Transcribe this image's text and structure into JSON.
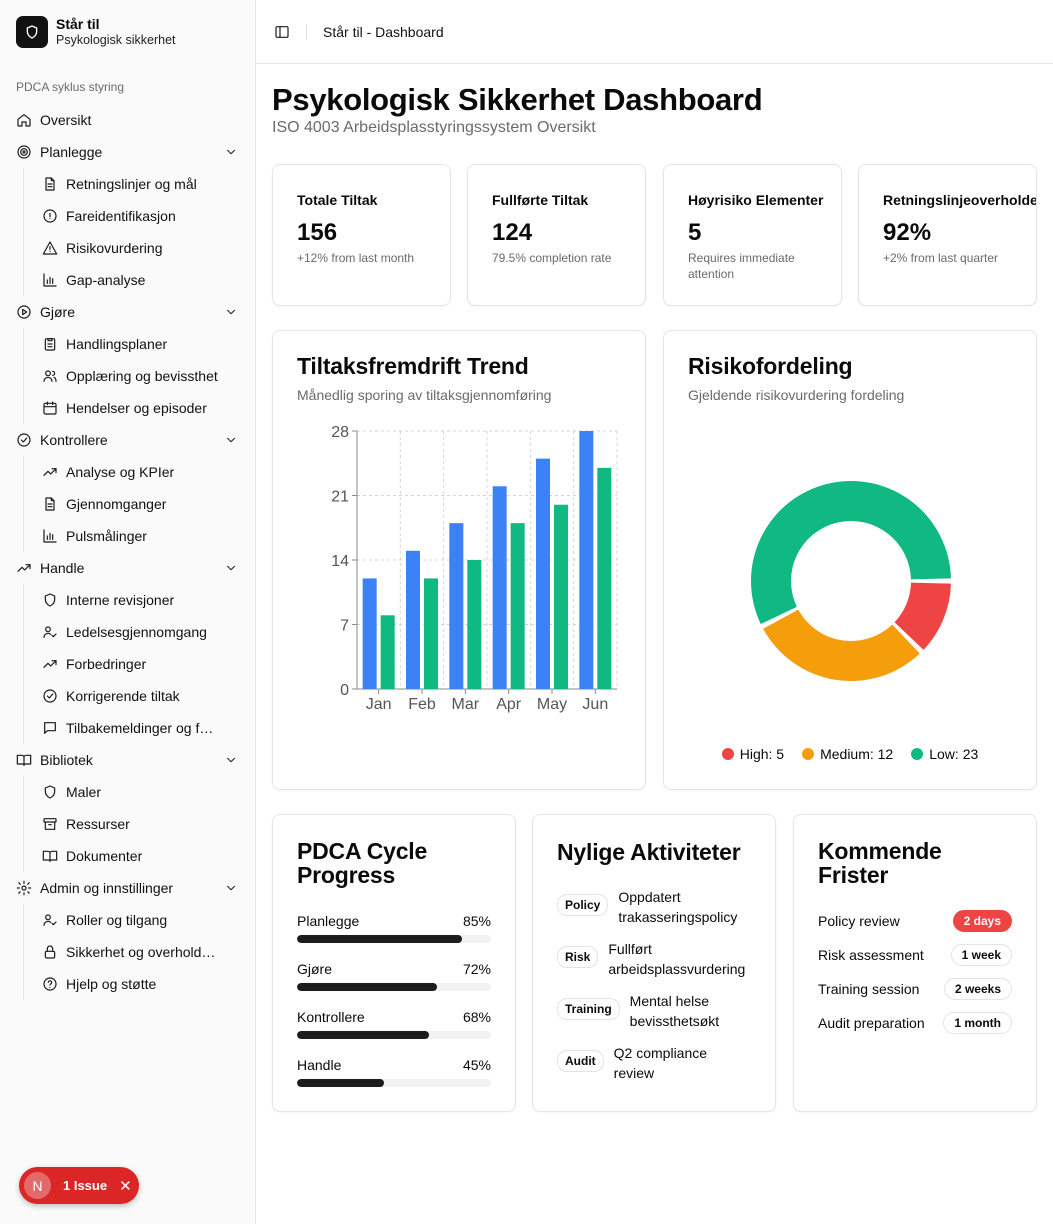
{
  "brand": {
    "title": "Står til",
    "subtitle": "Psykologisk sikkerhet"
  },
  "sidebar": {
    "group_label": "PDCA syklus styring",
    "overview": {
      "label": "Oversikt",
      "icon": "home-icon"
    },
    "sections": [
      {
        "label": "Planlegge",
        "icon": "target-icon",
        "items": [
          {
            "label": "Retningslinjer og mål",
            "icon": "file-text-icon"
          },
          {
            "label": "Fareidentifikasjon",
            "icon": "alert-circle-icon"
          },
          {
            "label": "Risikovurdering",
            "icon": "alert-triangle-icon"
          },
          {
            "label": "Gap-analyse",
            "icon": "bar-chart-icon"
          }
        ]
      },
      {
        "label": "Gjøre",
        "icon": "play-circle-icon",
        "items": [
          {
            "label": "Handlingsplaner",
            "icon": "clipboard-icon"
          },
          {
            "label": "Opplæring og bevissthet",
            "icon": "users-icon"
          },
          {
            "label": "Hendelser og episoder",
            "icon": "calendar-icon"
          }
        ]
      },
      {
        "label": "Kontrollere",
        "icon": "check-circle-icon",
        "items": [
          {
            "label": "Analyse og KPIer",
            "icon": "trending-up-icon"
          },
          {
            "label": "Gjennomganger",
            "icon": "file-text-icon"
          },
          {
            "label": "Pulsmålinger",
            "icon": "bar-chart-icon"
          }
        ]
      },
      {
        "label": "Handle",
        "icon": "trending-up-icon",
        "items": [
          {
            "label": "Interne revisjoner",
            "icon": "shield-icon"
          },
          {
            "label": "Ledelsesgjennomgang",
            "icon": "user-check-icon"
          },
          {
            "label": "Forbedringer",
            "icon": "trending-up-icon"
          },
          {
            "label": "Korrigerende tiltak",
            "icon": "check-circle-icon"
          },
          {
            "label": "Tilbakemeldinger og forslag",
            "icon": "message-square-icon"
          }
        ]
      },
      {
        "label": "Bibliotek",
        "icon": "book-open-icon",
        "items": [
          {
            "label": "Maler",
            "icon": "shield-icon"
          },
          {
            "label": "Ressurser",
            "icon": "archive-icon"
          },
          {
            "label": "Dokumenter",
            "icon": "book-open-icon"
          }
        ]
      },
      {
        "label": "Admin og innstillinger",
        "icon": "gear-icon",
        "items": [
          {
            "label": "Roller og tilgang",
            "icon": "user-check-icon"
          },
          {
            "label": "Sikkerhet og overholdelse",
            "icon": "lock-icon"
          },
          {
            "label": "Hjelp og støtte",
            "icon": "help-circle-icon"
          }
        ]
      }
    ]
  },
  "header": {
    "breadcrumb": "Står til - Dashboard"
  },
  "page": {
    "title": "Psykologisk Sikkerhet Dashboard",
    "subtitle": "ISO 4003 Arbeidsplasstyringssystem Oversikt"
  },
  "stats": [
    {
      "title": "Totale Tiltak",
      "value": "156",
      "note": "+12% from last month"
    },
    {
      "title": "Fullførte Tiltak",
      "value": "124",
      "note": "79.5% completion rate"
    },
    {
      "title": "Høyrisiko Elementer",
      "value": "5",
      "note": "Requires immediate attention"
    },
    {
      "title": "Retningslinjeoverholdelse",
      "value": "92%",
      "note": "+2% from last quarter"
    }
  ],
  "trend_card": {
    "title": "Tiltaksfremdrift Trend",
    "subtitle": "Månedlig sporing av tiltaksgjennomføring"
  },
  "risk_card": {
    "title": "Risikofordeling",
    "subtitle": "Gjeldende risikovurdering fordeling"
  },
  "chart_data": [
    {
      "type": "bar",
      "categories": [
        "Jan",
        "Feb",
        "Mar",
        "Apr",
        "May",
        "Jun"
      ],
      "series": [
        {
          "values": [
            12,
            15,
            18,
            22,
            25,
            28
          ],
          "color": "#3b82f6"
        },
        {
          "values": [
            8,
            12,
            14,
            18,
            20,
            24
          ],
          "color": "#10b981"
        }
      ],
      "ylim": [
        0,
        28
      ],
      "yticks": [
        "0",
        "7",
        "14",
        "21",
        "28"
      ],
      "grid": true
    },
    {
      "type": "pie",
      "donut": true,
      "labels": [
        "High",
        "Medium",
        "Low"
      ],
      "values": [
        5,
        12,
        23
      ],
      "colors": [
        "#ef4444",
        "#f59e0b",
        "#10b981"
      ],
      "legend_text": [
        "High: 5",
        "Medium: 12",
        "Low: 23"
      ],
      "legend_position": "bottom"
    }
  ],
  "pdca": {
    "title": "PDCA Cycle Progress",
    "rows": [
      {
        "label": "Planlegge",
        "value": 85,
        "display": "85%"
      },
      {
        "label": "Gjøre",
        "value": 72,
        "display": "72%"
      },
      {
        "label": "Kontrollere",
        "value": 68,
        "display": "68%"
      },
      {
        "label": "Handle",
        "value": 45,
        "display": "45%"
      }
    ]
  },
  "activities": {
    "title": "Nylige Aktiviteter",
    "items": [
      {
        "tag": "Policy",
        "text": "Oppdatert trakasseringspolicy"
      },
      {
        "tag": "Risk",
        "text": "Fullført arbeidsplassvurdering"
      },
      {
        "tag": "Training",
        "text": "Mental helse bevissthetsøkt"
      },
      {
        "tag": "Audit",
        "text": "Q2 compliance review"
      }
    ]
  },
  "deadlines": {
    "title": "Kommende Frister",
    "items": [
      {
        "label": "Policy review",
        "due": "2 days",
        "urgent": true
      },
      {
        "label": "Risk assessment",
        "due": "1 week",
        "urgent": false
      },
      {
        "label": "Training session",
        "due": "2 weeks",
        "urgent": false
      },
      {
        "label": "Audit preparation",
        "due": "1 month",
        "urgent": false
      }
    ]
  },
  "issue_badge": {
    "avatar": "N",
    "label": "1 Issue",
    "close": "✕"
  }
}
